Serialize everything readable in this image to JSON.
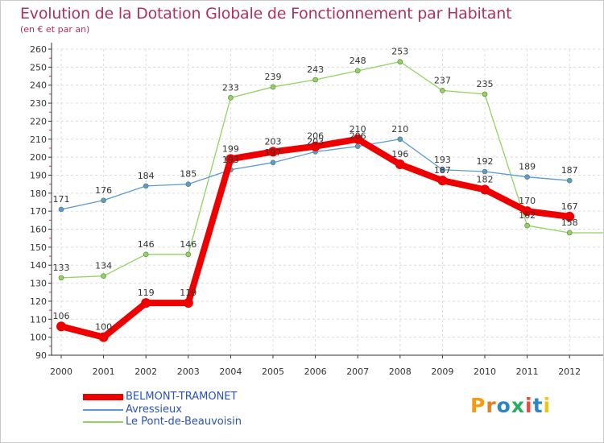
{
  "title": "Evolution de la Dotation Globale de Fonctionnement par Habitant",
  "subtitle": "(en € et par an)",
  "logo": {
    "text": "Proxiti",
    "colors": [
      "#f39c12",
      "#e67e22",
      "#2e86c1",
      "#27ae60",
      "#e74c3c",
      "#2e86c1",
      "#f1c40f"
    ]
  },
  "chart_data": {
    "type": "line",
    "x": [
      "2000",
      "2001",
      "2002",
      "2003",
      "2004",
      "2005",
      "2006",
      "2007",
      "2008",
      "2009",
      "2010",
      "2011",
      "2012"
    ],
    "ylim": [
      90,
      260
    ],
    "yticks": [
      90,
      100,
      110,
      120,
      130,
      140,
      150,
      160,
      170,
      180,
      190,
      200,
      210,
      220,
      230,
      240,
      250,
      260
    ],
    "grid": true,
    "legend_position": "bottom-left",
    "series": [
      {
        "name": "BELMONT-TRAMONET",
        "color": "#ee0000",
        "values": [
          106,
          100,
          119,
          119,
          199,
          203,
          206,
          210,
          196,
          187,
          182,
          170,
          167
        ]
      },
      {
        "name": "Avressieux",
        "color": "#5b9bd5",
        "values": [
          171,
          176,
          184,
          185,
          193,
          197,
          203,
          206,
          210,
          193,
          192,
          189,
          187
        ]
      },
      {
        "name": "Le Pont-de-Beauvoisin",
        "color": "#8fd460",
        "values": [
          133,
          134,
          146,
          146,
          233,
          239,
          243,
          248,
          253,
          237,
          235,
          162,
          158
        ]
      }
    ]
  }
}
